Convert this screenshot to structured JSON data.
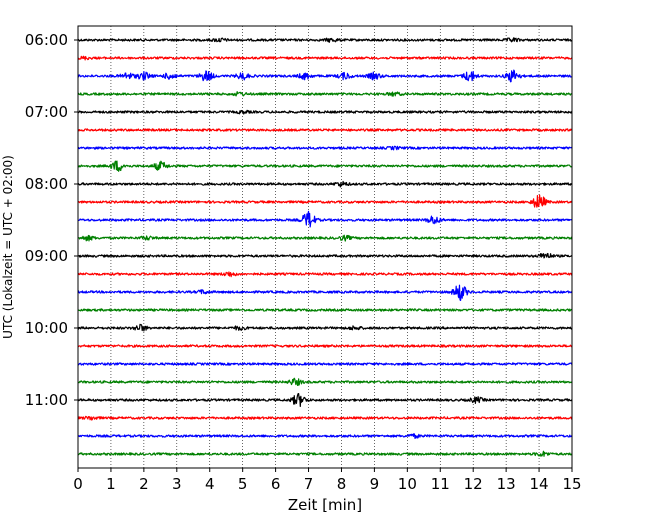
{
  "chart_data": {
    "type": "line",
    "title": "",
    "xlabel": "Zeit  [min]",
    "ylabel": "UTC (Lokalzeit = UTC + 02:00)",
    "xlim": [
      0,
      15
    ],
    "x_ticks": [
      0,
      1,
      2,
      3,
      4,
      5,
      6,
      7,
      8,
      9,
      10,
      11,
      12,
      13,
      14,
      15
    ],
    "x_tick_labels": [
      "0",
      "1",
      "2",
      "3",
      "4",
      "5",
      "6",
      "7",
      "8",
      "9",
      "10",
      "11",
      "12",
      "13",
      "14",
      "15"
    ],
    "grid": "vertical dotted lines at each minute",
    "trace_colors": [
      "#000000",
      "#ff0000",
      "#0000ff",
      "#008000"
    ],
    "y_tick_labels": [
      "06:00",
      "07:00",
      "08:00",
      "09:00",
      "10:00",
      "11:00"
    ],
    "trace_start_minutes_utc": [
      360,
      375,
      390,
      405,
      420,
      435,
      450,
      465,
      480,
      495,
      510,
      525,
      540,
      555,
      570,
      585,
      600,
      615,
      630,
      645,
      660,
      675,
      690,
      705
    ],
    "events": [
      {
        "trace": 0,
        "x": 4.3,
        "amp": 1.5
      },
      {
        "trace": 0,
        "x": 7.7,
        "amp": 1.5
      },
      {
        "trace": 0,
        "x": 13.2,
        "amp": 1.5
      },
      {
        "trace": 1,
        "x": 0.2,
        "amp": 1
      },
      {
        "trace": 2,
        "x": 1.5,
        "amp": 3
      },
      {
        "trace": 2,
        "x": 2.0,
        "amp": 3.5
      },
      {
        "trace": 2,
        "x": 2.8,
        "amp": 3
      },
      {
        "trace": 2,
        "x": 3.9,
        "amp": 5
      },
      {
        "trace": 2,
        "x": 5.0,
        "amp": 3
      },
      {
        "trace": 2,
        "x": 6.9,
        "amp": 3
      },
      {
        "trace": 2,
        "x": 8.1,
        "amp": 3
      },
      {
        "trace": 2,
        "x": 9.0,
        "amp": 3
      },
      {
        "trace": 2,
        "x": 11.9,
        "amp": 5
      },
      {
        "trace": 2,
        "x": 13.2,
        "amp": 6
      },
      {
        "trace": 3,
        "x": 4.9,
        "amp": 1.5
      },
      {
        "trace": 3,
        "x": 9.6,
        "amp": 1.5
      },
      {
        "trace": 4,
        "x": 5.0,
        "amp": 1
      },
      {
        "trace": 6,
        "x": 9.6,
        "amp": 1
      },
      {
        "trace": 7,
        "x": 1.2,
        "amp": 5
      },
      {
        "trace": 7,
        "x": 2.5,
        "amp": 4
      },
      {
        "trace": 8,
        "x": 8.0,
        "amp": 2
      },
      {
        "trace": 9,
        "x": 14.0,
        "amp": 7
      },
      {
        "trace": 10,
        "x": 7.0,
        "amp": 8
      },
      {
        "trace": 10,
        "x": 10.8,
        "amp": 4
      },
      {
        "trace": 11,
        "x": 0.3,
        "amp": 2
      },
      {
        "trace": 11,
        "x": 2.1,
        "amp": 1.5
      },
      {
        "trace": 11,
        "x": 8.1,
        "amp": 2
      },
      {
        "trace": 12,
        "x": 14.2,
        "amp": 3
      },
      {
        "trace": 13,
        "x": 4.6,
        "amp": 2
      },
      {
        "trace": 14,
        "x": 11.6,
        "amp": 8
      },
      {
        "trace": 14,
        "x": 3.8,
        "amp": 1.5
      },
      {
        "trace": 16,
        "x": 1.9,
        "amp": 3
      },
      {
        "trace": 16,
        "x": 4.9,
        "amp": 1.5
      },
      {
        "trace": 16,
        "x": 8.4,
        "amp": 1.5
      },
      {
        "trace": 19,
        "x": 6.6,
        "amp": 3
      },
      {
        "trace": 20,
        "x": 6.7,
        "amp": 6
      },
      {
        "trace": 20,
        "x": 12.1,
        "amp": 2.5
      },
      {
        "trace": 21,
        "x": 0.4,
        "amp": 1.5
      },
      {
        "trace": 22,
        "x": 10.2,
        "amp": 1.5
      },
      {
        "trace": 23,
        "x": 14.1,
        "amp": 2
      }
    ]
  }
}
